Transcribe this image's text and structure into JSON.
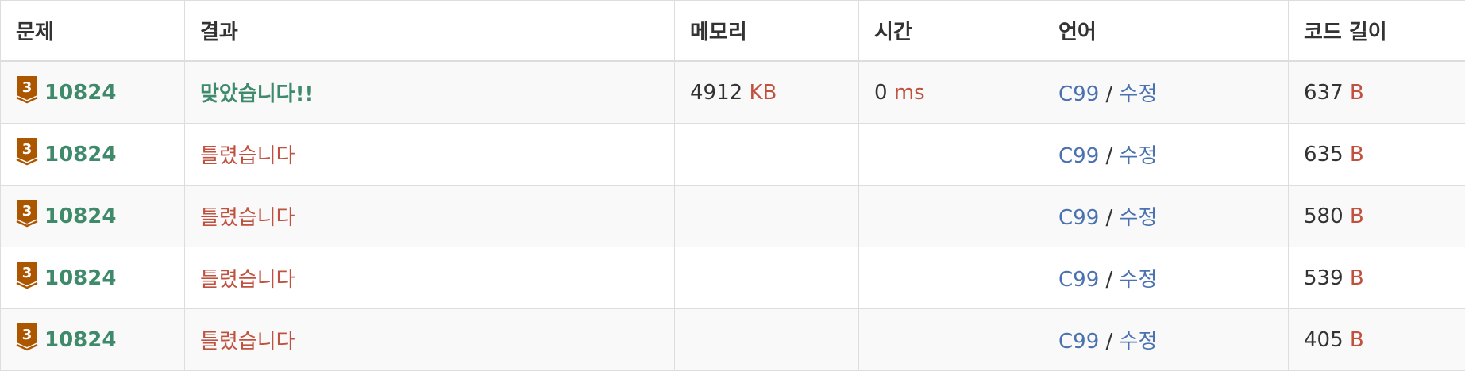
{
  "headers": [
    "문제",
    "결과",
    "메모리",
    "시간",
    "언어",
    "코드 길이"
  ],
  "rows": [
    {
      "tier": "3",
      "problem": "10824",
      "result": "맞았습니다!!",
      "result_status": "accepted",
      "memory": "4912",
      "memory_unit": "KB",
      "time": "0",
      "time_unit": "ms",
      "language": "C99",
      "separator": "/",
      "edit": "수정",
      "code_length": "637",
      "code_unit": "B"
    },
    {
      "tier": "3",
      "problem": "10824",
      "result": "틀렸습니다",
      "result_status": "wrong",
      "memory": "",
      "memory_unit": "",
      "time": "",
      "time_unit": "",
      "language": "C99",
      "separator": "/",
      "edit": "수정",
      "code_length": "635",
      "code_unit": "B"
    },
    {
      "tier": "3",
      "problem": "10824",
      "result": "틀렸습니다",
      "result_status": "wrong",
      "memory": "",
      "memory_unit": "",
      "time": "",
      "time_unit": "",
      "language": "C99",
      "separator": "/",
      "edit": "수정",
      "code_length": "580",
      "code_unit": "B"
    },
    {
      "tier": "3",
      "problem": "10824",
      "result": "틀렸습니다",
      "result_status": "wrong",
      "memory": "",
      "memory_unit": "",
      "time": "",
      "time_unit": "",
      "language": "C99",
      "separator": "/",
      "edit": "수정",
      "code_length": "539",
      "code_unit": "B"
    },
    {
      "tier": "3",
      "problem": "10824",
      "result": "틀렸습니다",
      "result_status": "wrong",
      "memory": "",
      "memory_unit": "",
      "time": "",
      "time_unit": "",
      "language": "C99",
      "separator": "/",
      "edit": "수정",
      "code_length": "405",
      "code_unit": "B"
    }
  ],
  "colors": {
    "accepted": "#3f8a6a",
    "wrong": "#c0513f",
    "link": "#4a72b0",
    "tier_bronze": "#ad5600"
  },
  "icons": {
    "tier": "bronze-tier-icon"
  }
}
